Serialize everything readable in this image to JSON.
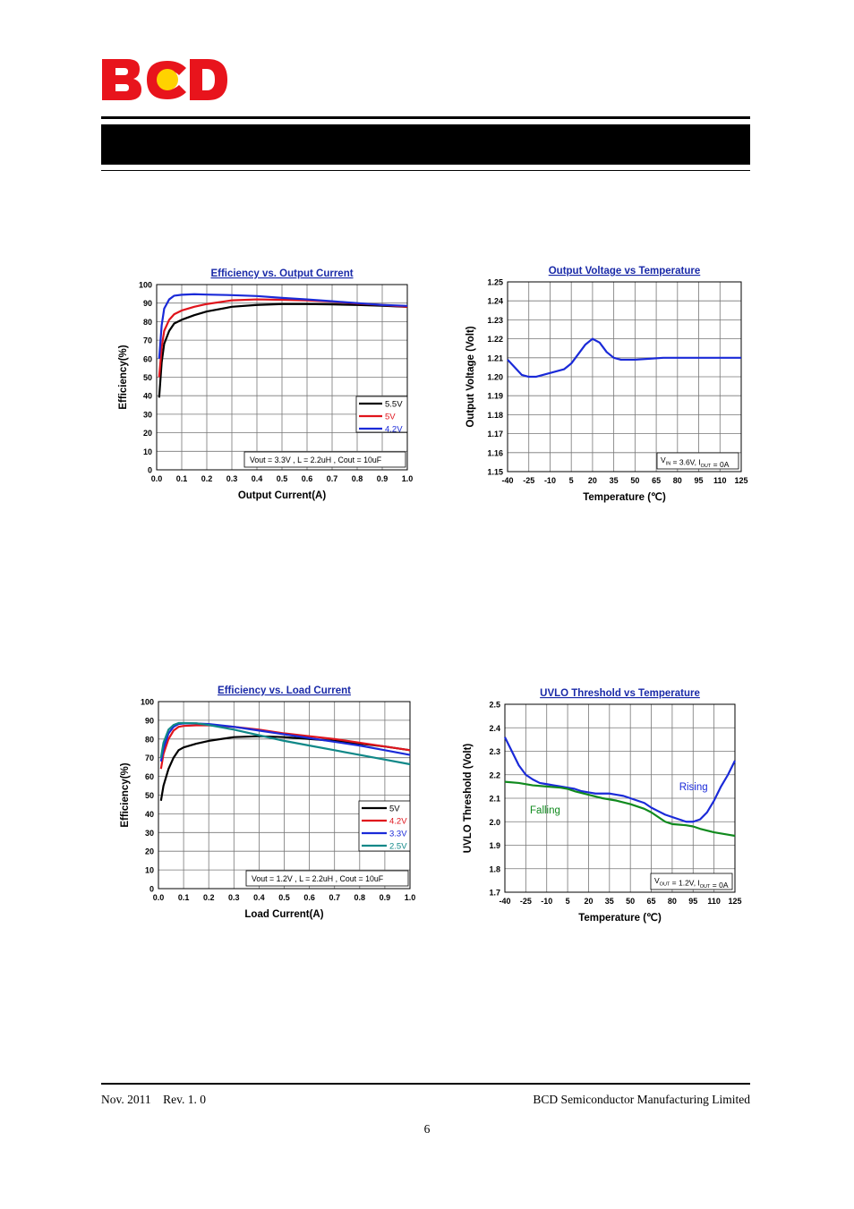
{
  "header": {
    "logo_text": "BCD",
    "colors": {
      "logo_red": "#e8141c",
      "logo_yellow": "#ffd200",
      "band": "#000000"
    }
  },
  "footer": {
    "date_rev": "Nov. 2011    Rev. 1. 0",
    "company": "BCD Semiconductor Manufacturing Limited",
    "page_number": "6"
  },
  "chart_data": [
    {
      "id": "eff-vs-output",
      "type": "line",
      "title": "Efficiency vs. Output Current",
      "xlabel": "Output Current(A)",
      "ylabel": "Efficiency(%)",
      "xlim": [
        0,
        1.0
      ],
      "ylim": [
        0,
        100
      ],
      "xticks": [
        0,
        0.1,
        0.2,
        0.3,
        0.4,
        0.5,
        0.6,
        0.7,
        0.8,
        0.9,
        1.0
      ],
      "xtick_labels": [
        "0.0",
        "0.1",
        "0.2",
        "0.3",
        "0.4",
        "0.5",
        "0.6",
        "0.7",
        "0.8",
        "0.9",
        "1.0"
      ],
      "yticks": [
        0,
        10,
        20,
        30,
        40,
        50,
        60,
        70,
        80,
        90,
        100
      ],
      "ytick_labels": [
        "0",
        "10",
        "20",
        "30",
        "40",
        "50",
        "60",
        "70",
        "80",
        "90",
        "100"
      ],
      "grid": true,
      "legend": "right-middle",
      "annotation": "Vout = 3.3V , L = 2.2uH , Cout = 10uF",
      "series": [
        {
          "name": "5.5V",
          "color": "#000000",
          "x": [
            0.01,
            0.02,
            0.03,
            0.05,
            0.07,
            0.1,
            0.15,
            0.2,
            0.3,
            0.4,
            0.5,
            0.6,
            0.7,
            0.8,
            0.9,
            1.0
          ],
          "y": [
            39,
            58,
            68,
            75,
            79,
            81,
            83.5,
            85.5,
            88,
            89,
            89.5,
            89.5,
            89.3,
            89,
            88.6,
            88
          ]
        },
        {
          "name": "5V",
          "color": "#e0141c",
          "x": [
            0.01,
            0.02,
            0.03,
            0.05,
            0.07,
            0.1,
            0.15,
            0.2,
            0.3,
            0.4,
            0.5,
            0.6,
            0.7,
            0.8,
            0.9,
            1.0
          ],
          "y": [
            50,
            66,
            75,
            81,
            84,
            86,
            88,
            89.5,
            91.5,
            92,
            91.8,
            91.5,
            90.8,
            89.8,
            89,
            88
          ]
        },
        {
          "name": "4.2V",
          "color": "#1a2ad8",
          "x": [
            0.01,
            0.02,
            0.03,
            0.05,
            0.07,
            0.1,
            0.15,
            0.2,
            0.3,
            0.4,
            0.5,
            0.6,
            0.7,
            0.8,
            0.9,
            1.0
          ],
          "y": [
            60,
            78,
            87,
            92,
            94,
            94.5,
            94.8,
            94.6,
            94.3,
            93.8,
            92.8,
            92,
            91,
            90,
            89,
            88.5
          ]
        }
      ]
    },
    {
      "id": "vout-vs-temp",
      "type": "line",
      "title": "Output Voltage vs Temperature",
      "xlabel": "Temperature (℃)",
      "ylabel": "Output Voltage (Volt)",
      "xlim": [
        -40,
        125
      ],
      "ylim": [
        1.15,
        1.25
      ],
      "xticks": [
        -40,
        -25,
        -10,
        5,
        20,
        35,
        50,
        65,
        80,
        95,
        110,
        125
      ],
      "xtick_labels": [
        "-40",
        "-25",
        "-10",
        "5",
        "20",
        "35",
        "50",
        "65",
        "80",
        "95",
        "110",
        "125"
      ],
      "yticks": [
        1.15,
        1.16,
        1.17,
        1.18,
        1.19,
        1.2,
        1.21,
        1.22,
        1.23,
        1.24,
        1.25
      ],
      "ytick_labels": [
        "1.15",
        "1.16",
        "1.17",
        "1.18",
        "1.19",
        "1.20",
        "1.21",
        "1.22",
        "1.23",
        "1.24",
        "1.25"
      ],
      "grid": true,
      "annotation_main": "V",
      "annotation_sub1": "IN",
      "annotation_mid": " = 3.6V, I",
      "annotation_sub2": "OUT",
      "annotation_end": " = 0A",
      "series": [
        {
          "name": "",
          "color": "#1a2ad8",
          "x": [
            -40,
            -35,
            -30,
            -25,
            -20,
            -15,
            -10,
            -5,
            0,
            5,
            10,
            15,
            20,
            25,
            30,
            35,
            40,
            45,
            50,
            60,
            70,
            80,
            95,
            110,
            125
          ],
          "y": [
            1.209,
            1.205,
            1.201,
            1.2,
            1.2,
            1.201,
            1.202,
            1.203,
            1.204,
            1.207,
            1.212,
            1.217,
            1.22,
            1.218,
            1.213,
            1.21,
            1.209,
            1.209,
            1.209,
            1.2095,
            1.21,
            1.21,
            1.21,
            1.21,
            1.21
          ]
        }
      ]
    },
    {
      "id": "eff-vs-load",
      "type": "line",
      "title": "Efficiency vs. Load Current",
      "xlabel": "Load Current(A)",
      "ylabel": "Efficiency(%)",
      "xlim": [
        0,
        1.0
      ],
      "ylim": [
        0,
        100
      ],
      "xticks": [
        0,
        0.1,
        0.2,
        0.3,
        0.4,
        0.5,
        0.6,
        0.7,
        0.8,
        0.9,
        1.0
      ],
      "xtick_labels": [
        "0.0",
        "0.1",
        "0.2",
        "0.3",
        "0.4",
        "0.5",
        "0.6",
        "0.7",
        "0.8",
        "0.9",
        "1.0"
      ],
      "yticks": [
        0,
        10,
        20,
        30,
        40,
        50,
        60,
        70,
        80,
        90,
        100
      ],
      "ytick_labels": [
        "0",
        "10",
        "20",
        "30",
        "40",
        "50",
        "60",
        "70",
        "80",
        "90",
        "100"
      ],
      "grid": true,
      "legend": "right-middle",
      "annotation": "Vout = 1.2V , L = 2.2uH , Cout = 10uF",
      "series": [
        {
          "name": "5V",
          "color": "#000000",
          "x": [
            0.01,
            0.02,
            0.04,
            0.06,
            0.08,
            0.1,
            0.15,
            0.2,
            0.3,
            0.4,
            0.5,
            0.6,
            0.7,
            0.8,
            0.9,
            1.0
          ],
          "y": [
            47,
            55,
            64,
            70,
            74,
            75.5,
            77.5,
            79,
            81,
            81.5,
            81,
            80,
            79,
            77.5,
            76,
            74
          ]
        },
        {
          "name": "4.2V",
          "color": "#e0141c",
          "x": [
            0.01,
            0.02,
            0.04,
            0.06,
            0.08,
            0.1,
            0.15,
            0.2,
            0.3,
            0.4,
            0.5,
            0.6,
            0.7,
            0.8,
            0.9,
            1.0
          ],
          "y": [
            64,
            72,
            80,
            84.5,
            86.5,
            87,
            87.3,
            87.3,
            86.5,
            85,
            83,
            81.5,
            80,
            78,
            76,
            74
          ]
        },
        {
          "name": "3.3V",
          "color": "#1a2ad8",
          "x": [
            0.01,
            0.02,
            0.04,
            0.06,
            0.08,
            0.1,
            0.15,
            0.2,
            0.3,
            0.4,
            0.5,
            0.6,
            0.7,
            0.8,
            0.9,
            1.0
          ],
          "y": [
            68,
            75,
            83,
            86.5,
            88,
            88.3,
            88.3,
            88,
            86.5,
            84.5,
            82.5,
            80.5,
            78.5,
            76.5,
            74,
            71.5
          ]
        },
        {
          "name": "2.5V",
          "color": "#108888",
          "x": [
            0.01,
            0.02,
            0.04,
            0.06,
            0.08,
            0.1,
            0.15,
            0.2,
            0.3,
            0.4,
            0.5,
            0.6,
            0.7,
            0.8,
            0.9,
            1.0
          ],
          "y": [
            70,
            78,
            85,
            87.5,
            88.5,
            88.5,
            88.4,
            87.5,
            85,
            82,
            79,
            76.5,
            74,
            71.5,
            69,
            66.5
          ]
        }
      ]
    },
    {
      "id": "uvlo-vs-temp",
      "type": "line",
      "title": "UVLO Threshold vs Temperature",
      "xlabel": "Temperature (℃)",
      "ylabel": "UVLO Threshold (Volt)",
      "xlim": [
        -40,
        125
      ],
      "ylim": [
        1.7,
        2.5
      ],
      "xticks": [
        -40,
        -25,
        -10,
        5,
        20,
        35,
        50,
        65,
        80,
        95,
        110,
        125
      ],
      "xtick_labels": [
        "-40",
        "-25",
        "-10",
        "5",
        "20",
        "35",
        "50",
        "65",
        "80",
        "95",
        "110",
        "125"
      ],
      "yticks": [
        1.7,
        1.8,
        1.9,
        2.0,
        2.1,
        2.2,
        2.3,
        2.4,
        2.5
      ],
      "ytick_labels": [
        "1.7",
        "1.8",
        "1.9",
        "2.0",
        "2.1",
        "2.2",
        "2.3",
        "2.4",
        "2.5"
      ],
      "grid": true,
      "annotation_main": "V",
      "annotation_sub1": "OUT",
      "annotation_mid": " = 1.2V, I",
      "annotation_sub2": "OUT",
      "annotation_end": " = 0A",
      "series": [
        {
          "name": "Rising",
          "color": "#1a2ad8",
          "x": [
            -40,
            -35,
            -30,
            -25,
            -20,
            -15,
            -10,
            -5,
            0,
            5,
            10,
            15,
            20,
            25,
            30,
            35,
            40,
            45,
            50,
            55,
            60,
            65,
            70,
            75,
            80,
            85,
            90,
            95,
            100,
            105,
            110,
            115,
            120,
            125
          ],
          "y": [
            2.36,
            2.3,
            2.24,
            2.2,
            2.18,
            2.165,
            2.16,
            2.155,
            2.15,
            2.145,
            2.14,
            2.13,
            2.125,
            2.12,
            2.12,
            2.12,
            2.115,
            2.11,
            2.1,
            2.09,
            2.08,
            2.06,
            2.045,
            2.03,
            2.02,
            2.01,
            2.0,
            2.0,
            2.01,
            2.04,
            2.09,
            2.15,
            2.2,
            2.26
          ]
        },
        {
          "name": "Falling",
          "color": "#108a1e",
          "x": [
            -40,
            -30,
            -20,
            -10,
            0,
            5,
            10,
            20,
            30,
            40,
            50,
            60,
            65,
            70,
            75,
            80,
            90,
            95,
            100,
            110,
            120,
            125
          ],
          "y": [
            2.17,
            2.165,
            2.155,
            2.15,
            2.145,
            2.14,
            2.13,
            2.115,
            2.1,
            2.09,
            2.075,
            2.055,
            2.04,
            2.02,
            2.0,
            1.99,
            1.985,
            1.98,
            1.97,
            1.955,
            1.945,
            1.94
          ]
        }
      ]
    }
  ]
}
